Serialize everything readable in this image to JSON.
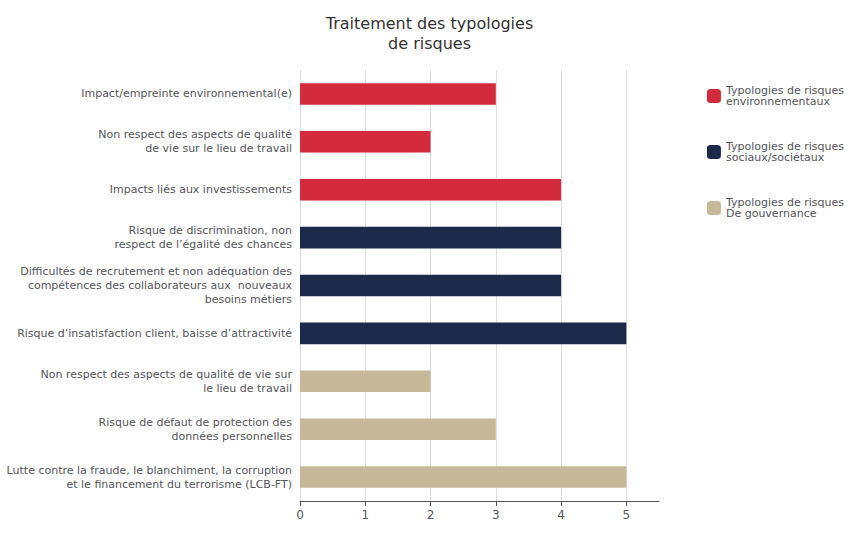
{
  "chart_data": {
    "type": "bar",
    "orientation": "horizontal",
    "title": "Traitement des typologies\nde risques",
    "categories": [
      "Impact/empreinte environnemental(e)",
      "Non respect des aspects de qualité\nde vie sur le lieu de travail",
      "Impacts liés aux investissements",
      "Risque de discrimination, non\nrespect de l’égalité des chances",
      "Difficultés de recrutement et non adéquation des\ncompétences des collaborateurs aux  nouveaux\nbesoins métiers",
      "Risque d’insatisfaction client, baisse d’attractivité",
      "Non respect des aspects de qualité de vie sur\nle lieu de travail",
      "Risque de défaut de protection des\ndonnées personnelles",
      "Lutte contre la fraude, le blanchiment, la corruption\net le financement du terrorisme (LCB-FT)"
    ],
    "series": [
      {
        "name": "Typologies de risques\nenvironnementaux",
        "color": "#d42b3c",
        "values": [
          3,
          2,
          4,
          null,
          null,
          null,
          null,
          null,
          null
        ]
      },
      {
        "name": "Typologies de risques\nsociaux/sociétaux",
        "color": "#1b2a4a",
        "values": [
          null,
          null,
          null,
          4,
          4,
          5,
          null,
          null,
          null
        ]
      },
      {
        "name": "Typologies de risques\nDe gouvernance",
        "color": "#c8b89a",
        "values": [
          null,
          null,
          null,
          null,
          null,
          null,
          2,
          3,
          5
        ]
      }
    ],
    "xlim": [
      0,
      5.5
    ],
    "xticks": [
      0,
      1,
      2,
      3,
      4,
      5
    ],
    "grid": true,
    "legend": "right"
  }
}
